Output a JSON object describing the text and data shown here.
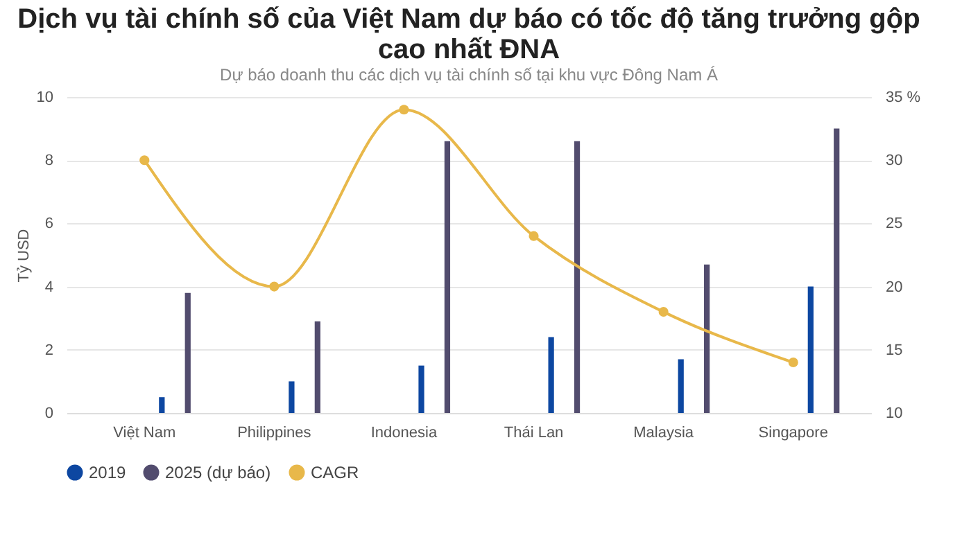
{
  "chart_data": {
    "type": "bar",
    "title": "Dịch vụ tài chính số của Việt Nam dự báo có tốc độ tăng trưởng gộp cao nhất ĐNA",
    "subtitle": "Dự báo doanh thu các dịch vụ tài chính số tại khu vực Đông Nam Á",
    "ylabel": "Tỷ USD",
    "categories": [
      "Việt Nam",
      "Philippines",
      "Indonesia",
      "Thái Lan",
      "Malaysia",
      "Singapore"
    ],
    "series": [
      {
        "name": "2019",
        "color": "#0d47a1",
        "values": [
          0.5,
          1,
          1.5,
          2.4,
          1.7,
          4
        ]
      },
      {
        "name": "2025 (dự báo)",
        "color": "#524c6e",
        "values": [
          3.8,
          2.9,
          8.6,
          8.6,
          4.7,
          9
        ]
      },
      {
        "name": "CAGR",
        "type": "line",
        "axis": "y2",
        "color": "#e8b84a",
        "marker": "circle",
        "line_style": "solid",
        "values": [
          30,
          20,
          34,
          24,
          18,
          14
        ]
      }
    ],
    "ylim": [
      0,
      10
    ],
    "yticks": [
      0,
      2,
      4,
      6,
      8,
      10
    ],
    "y2lim": [
      10,
      35
    ],
    "y2ticks": [
      10,
      15,
      20,
      25,
      30,
      {
        "value": 35,
        "label": "35 %"
      }
    ],
    "grid": "y",
    "legend": "bottom"
  }
}
